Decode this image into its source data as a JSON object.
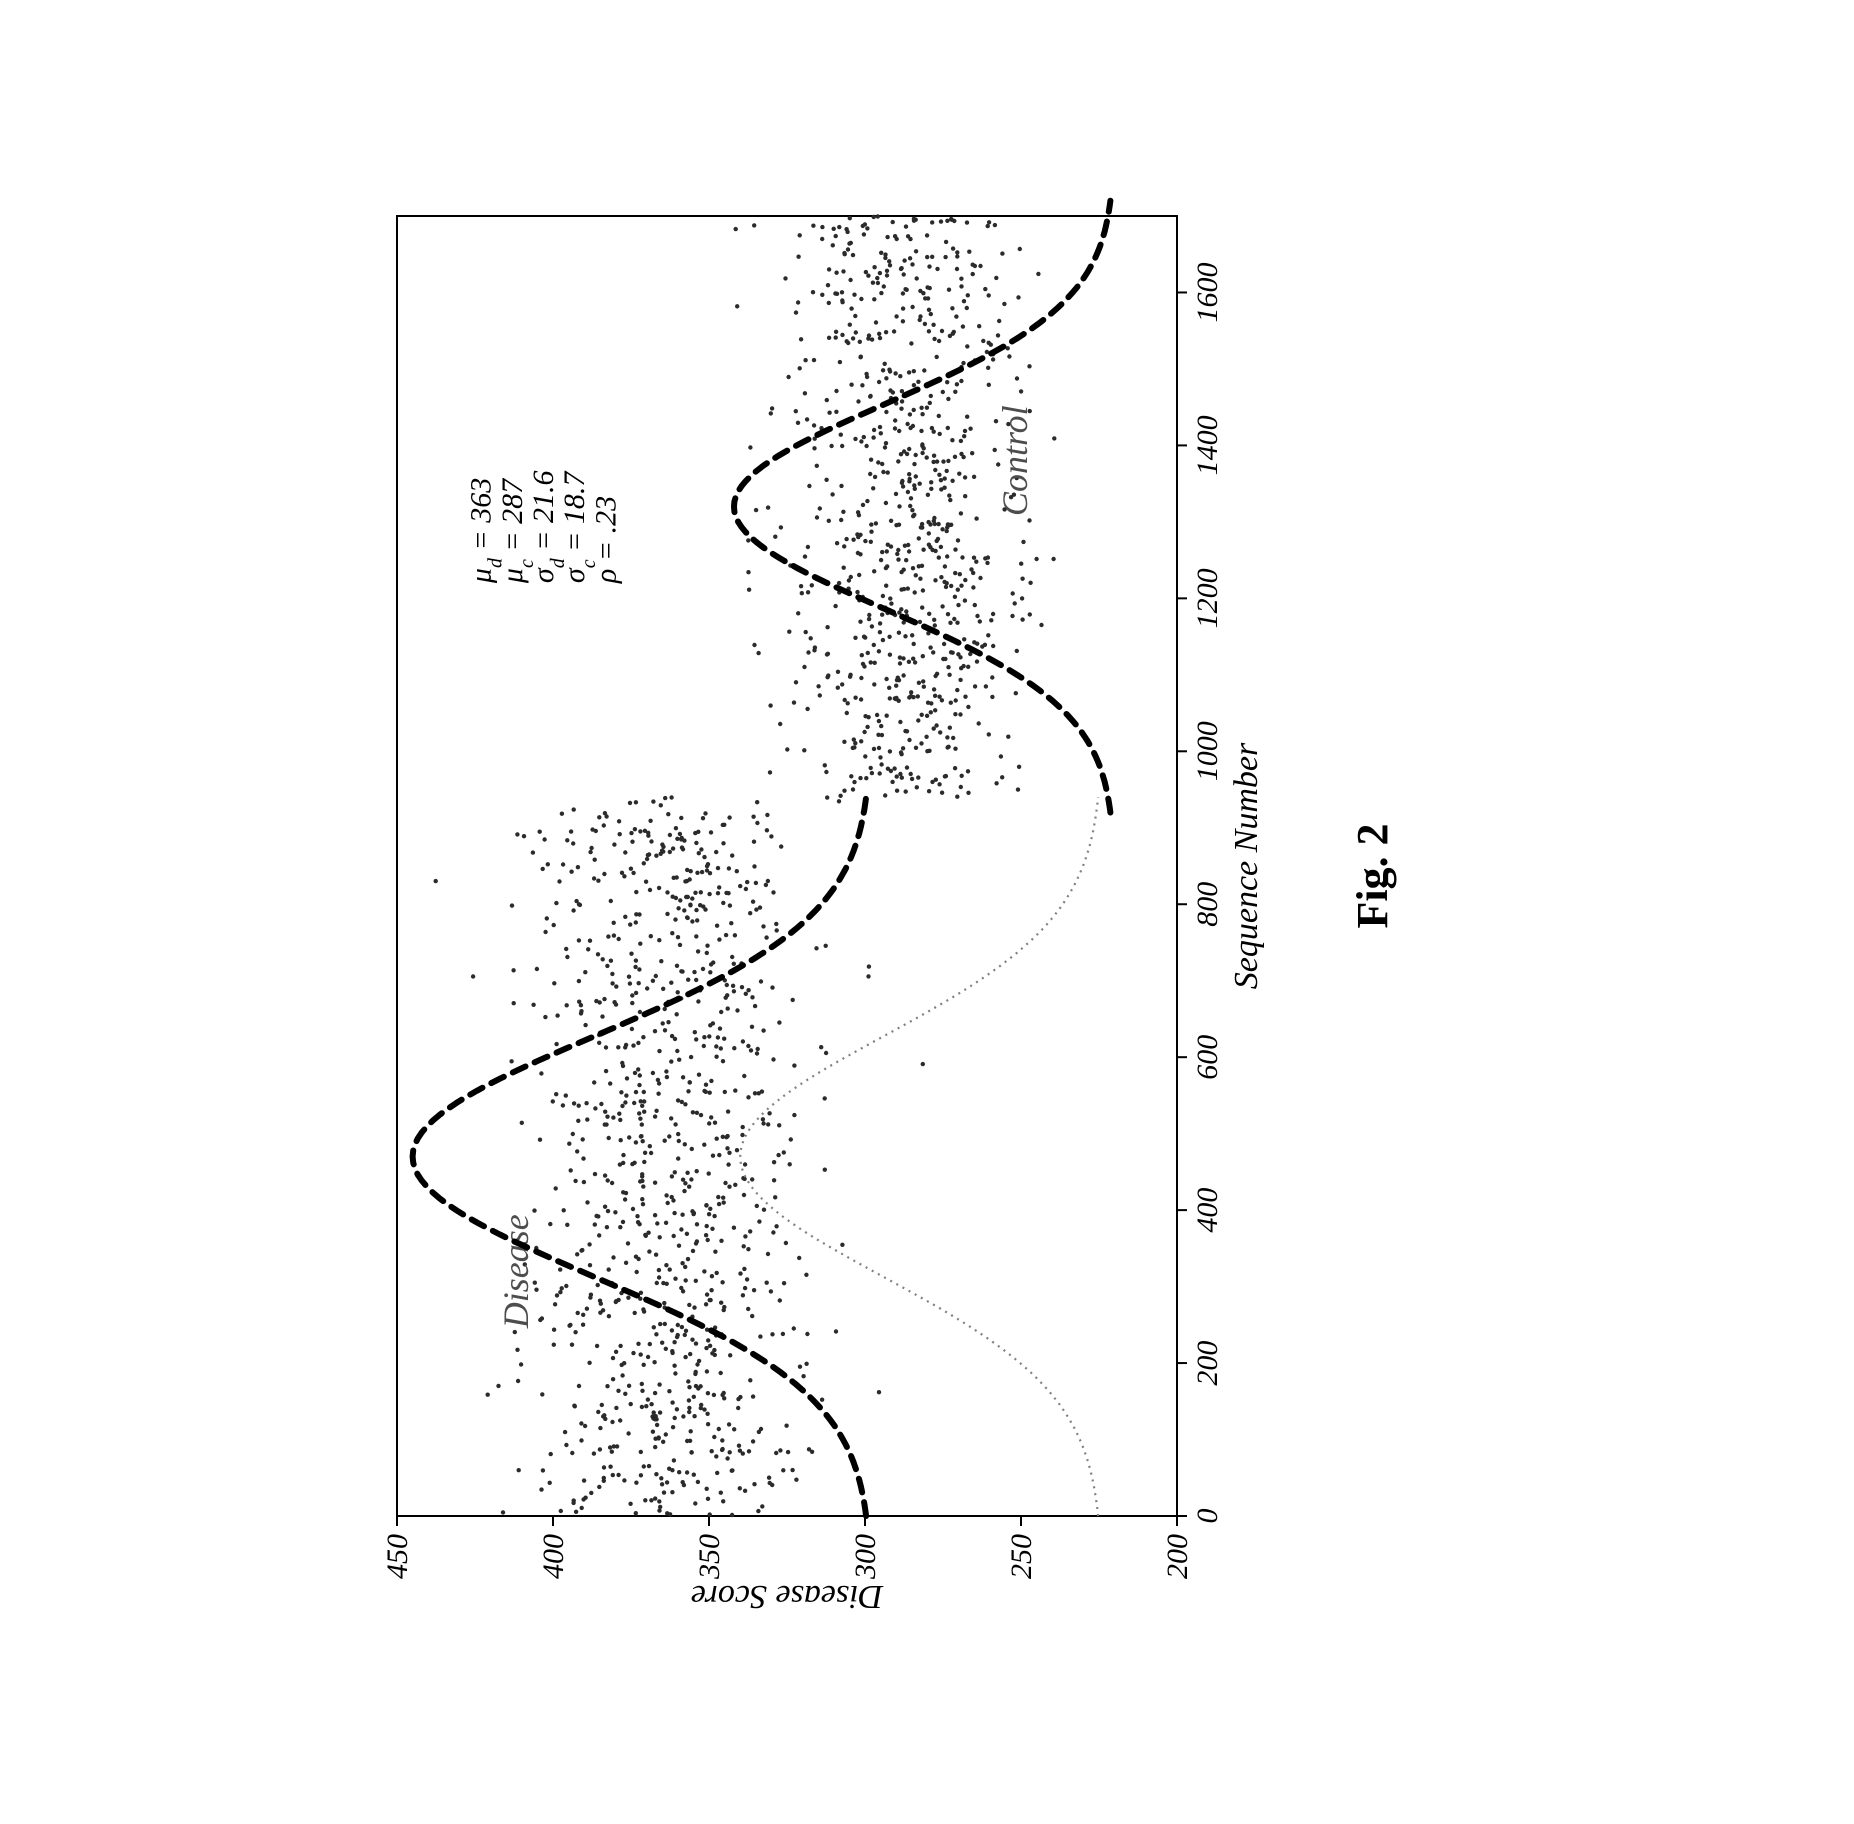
{
  "figure": {
    "caption": "Fig. 2",
    "x_axis_label": "Sequence Number",
    "y_axis_label": "Disease Score",
    "xlim": [
      0,
      1700
    ],
    "ylim": [
      200,
      450
    ],
    "x_ticks": [
      0,
      200,
      400,
      600,
      800,
      1000,
      1200,
      1400,
      1600
    ],
    "y_ticks": [
      200,
      250,
      300,
      350,
      400,
      450
    ],
    "tick_fontsize": 30,
    "label_fontsize": 34,
    "background_color": "#ffffff",
    "plot_border_color": "#000000",
    "plot_border_width": 2,
    "scatter": {
      "disease": {
        "x_start": 0,
        "x_end": 940,
        "mean": 363,
        "sigma": 21.6,
        "label": "Disease",
        "label_x": 320,
        "label_y": 408,
        "marker_color": "#2b2b2b",
        "marker_size": 2.2
      },
      "control": {
        "x_start": 940,
        "x_end": 1700,
        "mean": 287,
        "sigma": 18.7,
        "label": "Control",
        "label_x": 1380,
        "label_y": 248,
        "marker_color": "#2b2b2b",
        "marker_size": 2.2
      }
    },
    "curves": {
      "disease_dash": {
        "center_x": 470,
        "half_width": 470,
        "base_y": 298,
        "peak_y": 445,
        "stroke": "#000000",
        "width": 6,
        "dash": "14 10"
      },
      "control_dash": {
        "center_x": 1320,
        "half_width": 400,
        "base_y": 220,
        "peak_y": 342,
        "stroke": "#000000",
        "width": 6,
        "dash": "14 10"
      },
      "light_dotted": {
        "center_x": 470,
        "half_width": 470,
        "base_y": 224,
        "peak_y": 340,
        "stroke": "#808080",
        "width": 2.2,
        "dash": "2 5"
      }
    },
    "stats": {
      "x": 1220,
      "y_start": 420,
      "line_h": 28,
      "lines": [
        "μ_d = 363",
        "μ_c = 287",
        "σ_d = 21.6",
        "σ_c = 18.7",
        "ρ = .23"
      ],
      "mu_d": "363",
      "mu_c": "287",
      "sigma_d": "21.6",
      "sigma_c": "18.7",
      "rho": ".23"
    }
  }
}
